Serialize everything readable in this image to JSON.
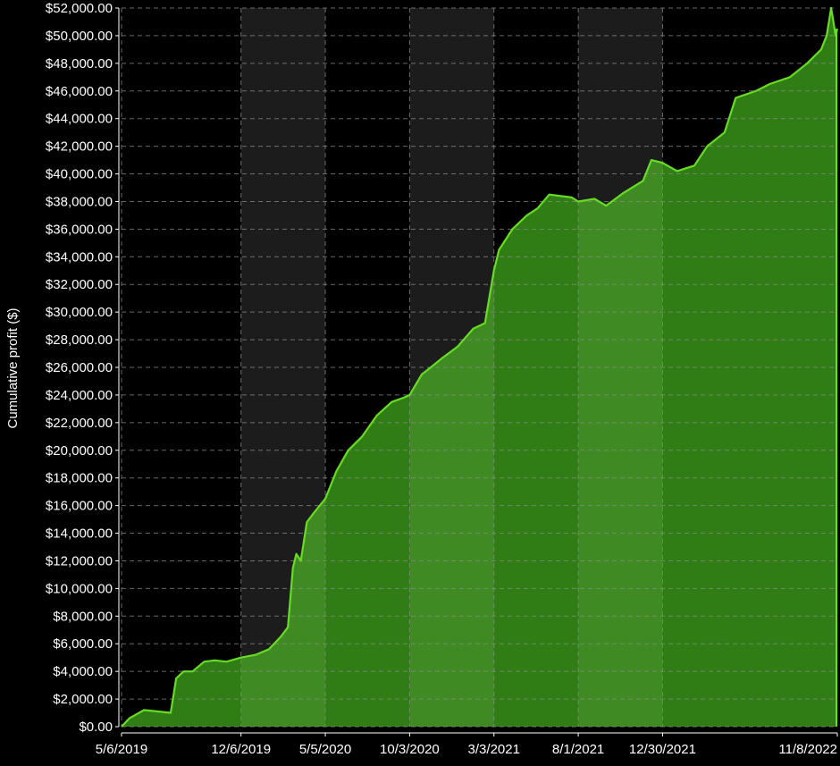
{
  "colors": {
    "background": "#000000",
    "band": "#1c1c1c",
    "grid": "#8a8a8a",
    "line": "#66dd22",
    "fill": "#2f7d14",
    "fill_band": "#3f8a22",
    "text": "#ffffff"
  },
  "chart_data": {
    "type": "area",
    "ylabel": "Cumulative profit ($)",
    "xlabel": "",
    "ylim": [
      0,
      52000
    ],
    "y_ticks": [
      0,
      2000,
      4000,
      6000,
      8000,
      10000,
      12000,
      14000,
      16000,
      18000,
      20000,
      22000,
      24000,
      26000,
      28000,
      30000,
      32000,
      34000,
      36000,
      38000,
      40000,
      42000,
      44000,
      46000,
      48000,
      50000,
      52000
    ],
    "y_tick_labels": [
      "$0.00",
      "$2,000.00",
      "$4,000.00",
      "$6,000.00",
      "$8,000.00",
      "$10,000.00",
      "$12,000.00",
      "$14,000.00",
      "$16,000.00",
      "$18,000.00",
      "$20,000.00",
      "$22,000.00",
      "$24,000.00",
      "$26,000.00",
      "$28,000.00",
      "$30,000.00",
      "$32,000.00",
      "$34,000.00",
      "$36,000.00",
      "$38,000.00",
      "$40,000.00",
      "$42,000.00",
      "$44,000.00",
      "$46,000.00",
      "$48,000.00",
      "$50,000.00",
      "$52,000.00"
    ],
    "x_tick_labels": [
      "5/6/2019",
      "12/6/2019",
      "5/5/2020",
      "10/3/2020",
      "3/3/2021",
      "8/1/2021",
      "12/30/2021",
      "11/8/2022"
    ],
    "xlim": [
      "2019-05-06",
      "2022-11-08"
    ],
    "grid": true,
    "shaded_bands": [
      [
        "2019-12-06",
        "2020-05-05"
      ],
      [
        "2020-10-03",
        "2021-03-03"
      ],
      [
        "2021-08-01",
        "2021-12-30"
      ]
    ],
    "series": [
      {
        "x": [
          "2019-05-06",
          "2019-05-20",
          "2019-06-15",
          "2019-07-10",
          "2019-08-02",
          "2019-08-12",
          "2019-08-25",
          "2019-09-10",
          "2019-10-01",
          "2019-10-20",
          "2019-11-10",
          "2019-12-06",
          "2020-01-01",
          "2020-01-25",
          "2020-02-15",
          "2020-02-28",
          "2020-03-08",
          "2020-03-14",
          "2020-03-22",
          "2020-04-02",
          "2020-04-15",
          "2020-05-05",
          "2020-05-25",
          "2020-06-15",
          "2020-07-10",
          "2020-08-05",
          "2020-09-01",
          "2020-09-22",
          "2020-10-03",
          "2020-10-25",
          "2020-11-10",
          "2020-12-01",
          "2020-12-28",
          "2021-01-25",
          "2021-02-15",
          "2021-03-03",
          "2021-03-12",
          "2021-04-05",
          "2021-05-01",
          "2021-05-20",
          "2021-06-10",
          "2021-07-20",
          "2021-08-01",
          "2021-08-30",
          "2021-09-20",
          "2021-10-20",
          "2021-11-25",
          "2021-12-10",
          "2021-12-30",
          "2022-01-25",
          "2022-02-25",
          "2022-03-20",
          "2022-04-20",
          "2022-05-10",
          "2022-06-15",
          "2022-07-10",
          "2022-08-15",
          "2022-09-15",
          "2022-10-10",
          "2022-10-20",
          "2022-10-28",
          "2022-11-05",
          "2022-11-08"
        ],
        "y": [
          0,
          600,
          1200,
          1100,
          1000,
          3500,
          4000,
          4000,
          4700,
          4800,
          4700,
          5000,
          5200,
          5600,
          6500,
          7200,
          11500,
          12500,
          12000,
          14800,
          15500,
          16500,
          18500,
          20000,
          21000,
          22500,
          23500,
          23800,
          24000,
          25500,
          26000,
          26700,
          27500,
          28800,
          29200,
          33000,
          34500,
          36000,
          37000,
          37500,
          38500,
          38300,
          38000,
          38200,
          37700,
          38600,
          39500,
          41000,
          40800,
          40200,
          40600,
          42000,
          43000,
          45500,
          46000,
          46500,
          47000,
          48000,
          49000,
          50000,
          52000,
          50000,
          50500
        ]
      }
    ]
  }
}
